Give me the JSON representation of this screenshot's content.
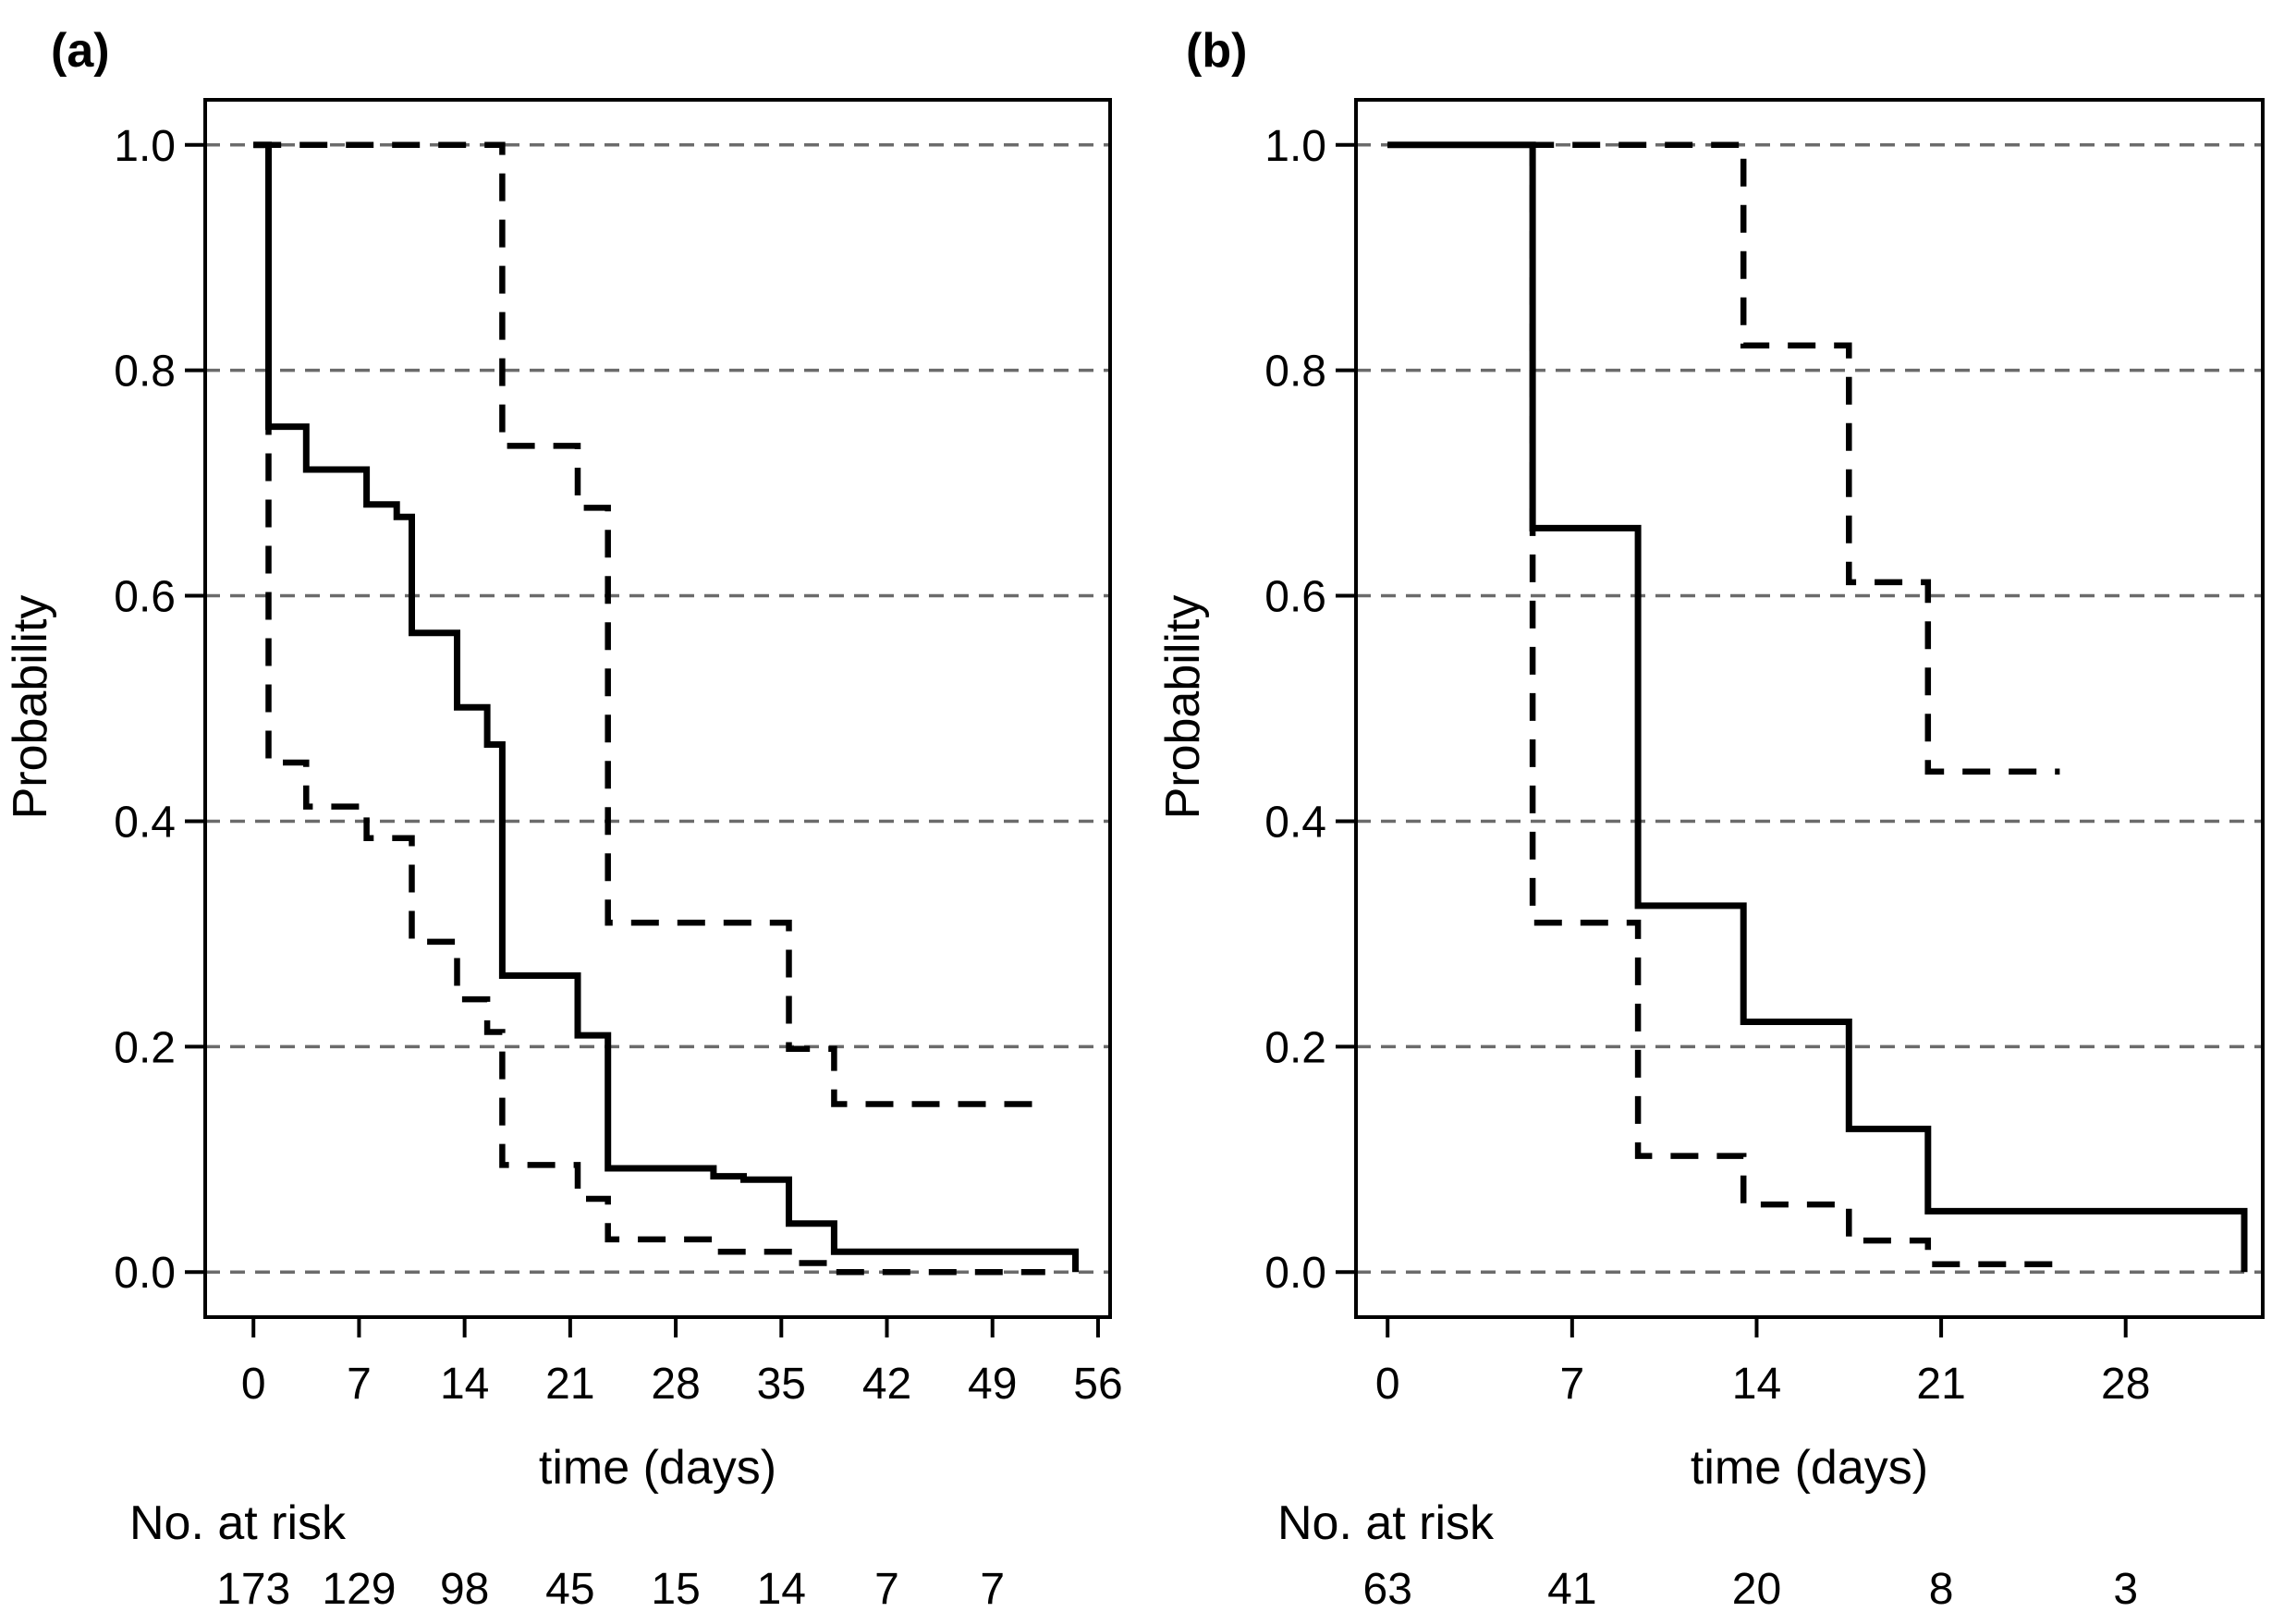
{
  "chart_data": [
    {
      "type": "line",
      "step": true,
      "panel_label": "(a)",
      "xlabel": "time (days)",
      "ylabel": "Probability",
      "xlim": [
        -3.2,
        56.8
      ],
      "ylim": [
        -0.04,
        1.04
      ],
      "xticks": [
        0,
        7,
        14,
        21,
        28,
        35,
        42,
        49,
        56
      ],
      "yticks": [
        0.0,
        0.2,
        0.4,
        0.6,
        0.8,
        1.0
      ],
      "ytick_labels": [
        "0.0",
        "0.2",
        "0.4",
        "0.6",
        "0.8",
        "1.0"
      ],
      "grid": "horizontal dashed",
      "risk_table": {
        "title": "No. at risk",
        "times": [
          0,
          7,
          14,
          21,
          28,
          35,
          42,
          49
        ],
        "counts": [
          "173",
          "129",
          "98",
          "45",
          "15",
          "14",
          "7",
          "7"
        ]
      },
      "series": [
        {
          "style": "solid",
          "x": [
            0,
            1,
            1,
            3.5,
            3.5,
            7.5,
            7.5,
            9.5,
            9.5,
            10.5,
            10.5,
            13.5,
            13.5,
            15.5,
            15.5,
            16.5,
            16.5,
            21.5,
            21.5,
            23.5,
            23.5,
            30.5,
            30.5,
            32.5,
            32.5,
            35.5,
            35.5,
            38.5,
            38.5,
            54.5,
            54.5
          ],
          "y": [
            1.0,
            1.0,
            0.75,
            0.75,
            0.712,
            0.712,
            0.681,
            0.681,
            0.67,
            0.67,
            0.567,
            0.567,
            0.501,
            0.501,
            0.468,
            0.468,
            0.263,
            0.263,
            0.21,
            0.21,
            0.092,
            0.092,
            0.085,
            0.085,
            0.082,
            0.082,
            0.043,
            0.043,
            0.018,
            0.018,
            0.0
          ]
        },
        {
          "style": "dashed",
          "x": [
            0,
            1,
            1,
            3.5,
            3.5,
            7.5,
            7.5,
            10.5,
            10.5,
            13.5,
            13.5,
            15.5,
            15.5,
            16.5,
            16.5,
            21.5,
            21.5,
            23.5,
            23.5,
            30.5,
            30.5,
            35.5,
            35.5,
            38.5,
            38.5,
            52.5
          ],
          "y": [
            1.0,
            1.0,
            0.452,
            0.452,
            0.413,
            0.413,
            0.385,
            0.385,
            0.293,
            0.293,
            0.242,
            0.242,
            0.213,
            0.213,
            0.095,
            0.095,
            0.065,
            0.065,
            0.029,
            0.029,
            0.018,
            0.018,
            0.008,
            0.008,
            0.0,
            0.0
          ]
        },
        {
          "style": "dashed",
          "x": [
            0,
            16.5,
            16.5,
            21.5,
            21.5,
            23.5,
            23.5,
            35.5,
            35.5,
            38.5,
            38.5,
            52.5
          ],
          "y": [
            1.0,
            1.0,
            0.733,
            0.733,
            0.678,
            0.678,
            0.31,
            0.31,
            0.198,
            0.198,
            0.149,
            0.149
          ]
        }
      ]
    },
    {
      "type": "line",
      "step": true,
      "panel_label": "(b)",
      "xlabel": "time (days)",
      "ylabel": "Probability",
      "xlim": [
        -1.2,
        33.2
      ],
      "ylim": [
        -0.04,
        1.04
      ],
      "xticks": [
        0,
        7,
        14,
        21,
        28
      ],
      "yticks": [
        0.0,
        0.2,
        0.4,
        0.6,
        0.8,
        1.0
      ],
      "ytick_labels": [
        "0.0",
        "0.2",
        "0.4",
        "0.6",
        "0.8",
        "1.0"
      ],
      "grid": "horizontal dashed",
      "risk_table": {
        "title": "No. at risk",
        "times": [
          0,
          7,
          14,
          21,
          28
        ],
        "counts": [
          "63",
          "41",
          "20",
          "8",
          "3"
        ]
      },
      "series": [
        {
          "style": "solid",
          "x": [
            0,
            5.5,
            5.5,
            9.5,
            9.5,
            13.5,
            13.5,
            17.5,
            17.5,
            20.5,
            20.5,
            32.5,
            32.5
          ],
          "y": [
            1.0,
            1.0,
            0.66,
            0.66,
            0.325,
            0.325,
            0.222,
            0.222,
            0.127,
            0.127,
            0.054,
            0.054,
            0.0
          ]
        },
        {
          "style": "dashed",
          "x": [
            0,
            5.5,
            5.5,
            9.5,
            9.5,
            13.5,
            13.5,
            17.5,
            17.5,
            20.5,
            20.5,
            25.5
          ],
          "y": [
            1.0,
            1.0,
            0.31,
            0.31,
            0.103,
            0.103,
            0.06,
            0.06,
            0.028,
            0.028,
            0.007,
            0.007
          ]
        },
        {
          "style": "dashed",
          "x": [
            0,
            13.5,
            13.5,
            17.5,
            17.5,
            20.5,
            20.5,
            25.5
          ],
          "y": [
            1.0,
            1.0,
            0.822,
            0.822,
            0.612,
            0.612,
            0.444,
            0.444
          ]
        }
      ]
    }
  ]
}
